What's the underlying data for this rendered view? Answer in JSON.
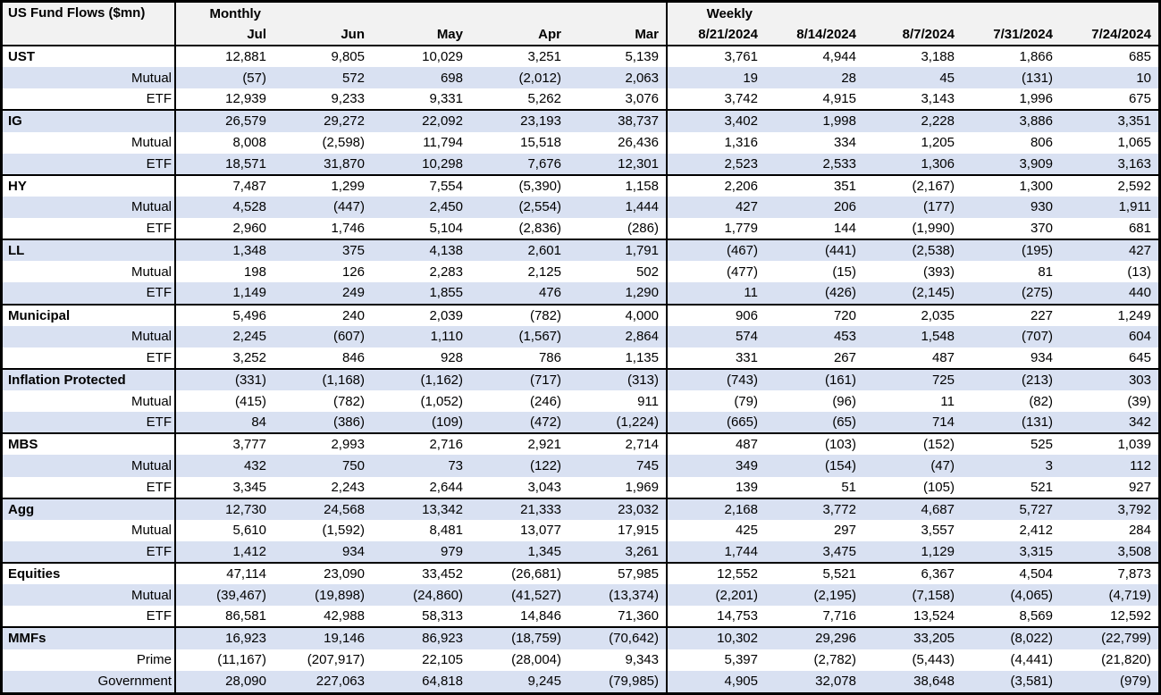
{
  "chart_data": {
    "type": "table",
    "title": "US Fund Flows ($mn)",
    "column_groups": [
      {
        "label": "Monthly",
        "columns": [
          "Jul",
          "Jun",
          "May",
          "Apr",
          "Mar"
        ]
      },
      {
        "label": "Weekly",
        "columns": [
          "8/21/2024",
          "8/14/2024",
          "8/7/2024",
          "7/31/2024",
          "7/24/2024"
        ]
      }
    ],
    "rows": [
      {
        "label": "UST",
        "level": "category",
        "values": [
          "12,881",
          "9,805",
          "10,029",
          "3,251",
          "5,139",
          "3,761",
          "4,944",
          "3,188",
          "1,866",
          "685"
        ]
      },
      {
        "label": "Mutual",
        "level": "sub",
        "values": [
          "(57)",
          "572",
          "698",
          "(2,012)",
          "2,063",
          "19",
          "28",
          "45",
          "(131)",
          "10"
        ]
      },
      {
        "label": "ETF",
        "level": "sub",
        "values": [
          "12,939",
          "9,233",
          "9,331",
          "5,262",
          "3,076",
          "3,742",
          "4,915",
          "3,143",
          "1,996",
          "675"
        ]
      },
      {
        "label": "IG",
        "level": "category",
        "values": [
          "26,579",
          "29,272",
          "22,092",
          "23,193",
          "38,737",
          "3,402",
          "1,998",
          "2,228",
          "3,886",
          "3,351"
        ]
      },
      {
        "label": "Mutual",
        "level": "sub",
        "values": [
          "8,008",
          "(2,598)",
          "11,794",
          "15,518",
          "26,436",
          "1,316",
          "334",
          "1,205",
          "806",
          "1,065"
        ]
      },
      {
        "label": "ETF",
        "level": "sub",
        "values": [
          "18,571",
          "31,870",
          "10,298",
          "7,676",
          "12,301",
          "2,523",
          "2,533",
          "1,306",
          "3,909",
          "3,163"
        ]
      },
      {
        "label": "HY",
        "level": "category",
        "values": [
          "7,487",
          "1,299",
          "7,554",
          "(5,390)",
          "1,158",
          "2,206",
          "351",
          "(2,167)",
          "1,300",
          "2,592"
        ]
      },
      {
        "label": "Mutual",
        "level": "sub",
        "values": [
          "4,528",
          "(447)",
          "2,450",
          "(2,554)",
          "1,444",
          "427",
          "206",
          "(177)",
          "930",
          "1,911"
        ]
      },
      {
        "label": "ETF",
        "level": "sub",
        "values": [
          "2,960",
          "1,746",
          "5,104",
          "(2,836)",
          "(286)",
          "1,779",
          "144",
          "(1,990)",
          "370",
          "681"
        ]
      },
      {
        "label": "LL",
        "level": "category",
        "values": [
          "1,348",
          "375",
          "4,138",
          "2,601",
          "1,791",
          "(467)",
          "(441)",
          "(2,538)",
          "(195)",
          "427"
        ]
      },
      {
        "label": "Mutual",
        "level": "sub",
        "values": [
          "198",
          "126",
          "2,283",
          "2,125",
          "502",
          "(477)",
          "(15)",
          "(393)",
          "81",
          "(13)"
        ]
      },
      {
        "label": "ETF",
        "level": "sub",
        "values": [
          "1,149",
          "249",
          "1,855",
          "476",
          "1,290",
          "11",
          "(426)",
          "(2,145)",
          "(275)",
          "440"
        ]
      },
      {
        "label": "Municipal",
        "level": "category",
        "values": [
          "5,496",
          "240",
          "2,039",
          "(782)",
          "4,000",
          "906",
          "720",
          "2,035",
          "227",
          "1,249"
        ]
      },
      {
        "label": "Mutual",
        "level": "sub",
        "values": [
          "2,245",
          "(607)",
          "1,110",
          "(1,567)",
          "2,864",
          "574",
          "453",
          "1,548",
          "(707)",
          "604"
        ]
      },
      {
        "label": "ETF",
        "level": "sub",
        "values": [
          "3,252",
          "846",
          "928",
          "786",
          "1,135",
          "331",
          "267",
          "487",
          "934",
          "645"
        ]
      },
      {
        "label": "Inflation Protected",
        "level": "category",
        "values": [
          "(331)",
          "(1,168)",
          "(1,162)",
          "(717)",
          "(313)",
          "(743)",
          "(161)",
          "725",
          "(213)",
          "303"
        ]
      },
      {
        "label": "Mutual",
        "level": "sub",
        "values": [
          "(415)",
          "(782)",
          "(1,052)",
          "(246)",
          "911",
          "(79)",
          "(96)",
          "11",
          "(82)",
          "(39)"
        ]
      },
      {
        "label": "ETF",
        "level": "sub",
        "values": [
          "84",
          "(386)",
          "(109)",
          "(472)",
          "(1,224)",
          "(665)",
          "(65)",
          "714",
          "(131)",
          "342"
        ]
      },
      {
        "label": "MBS",
        "level": "category",
        "values": [
          "3,777",
          "2,993",
          "2,716",
          "2,921",
          "2,714",
          "487",
          "(103)",
          "(152)",
          "525",
          "1,039"
        ]
      },
      {
        "label": "Mutual",
        "level": "sub",
        "values": [
          "432",
          "750",
          "73",
          "(122)",
          "745",
          "349",
          "(154)",
          "(47)",
          "3",
          "112"
        ]
      },
      {
        "label": "ETF",
        "level": "sub",
        "values": [
          "3,345",
          "2,243",
          "2,644",
          "3,043",
          "1,969",
          "139",
          "51",
          "(105)",
          "521",
          "927"
        ]
      },
      {
        "label": "Agg",
        "level": "category",
        "values": [
          "12,730",
          "24,568",
          "13,342",
          "21,333",
          "23,032",
          "2,168",
          "3,772",
          "4,687",
          "5,727",
          "3,792"
        ]
      },
      {
        "label": "Mutual",
        "level": "sub",
        "values": [
          "5,610",
          "(1,592)",
          "8,481",
          "13,077",
          "17,915",
          "425",
          "297",
          "3,557",
          "2,412",
          "284"
        ]
      },
      {
        "label": "ETF",
        "level": "sub",
        "values": [
          "1,412",
          "934",
          "979",
          "1,345",
          "3,261",
          "1,744",
          "3,475",
          "1,129",
          "3,315",
          "3,508"
        ]
      },
      {
        "label": "Equities",
        "level": "category",
        "values": [
          "47,114",
          "23,090",
          "33,452",
          "(26,681)",
          "57,985",
          "12,552",
          "5,521",
          "6,367",
          "4,504",
          "7,873"
        ]
      },
      {
        "label": "Mutual",
        "level": "sub",
        "values": [
          "(39,467)",
          "(19,898)",
          "(24,860)",
          "(41,527)",
          "(13,374)",
          "(2,201)",
          "(2,195)",
          "(7,158)",
          "(4,065)",
          "(4,719)"
        ]
      },
      {
        "label": "ETF",
        "level": "sub",
        "values": [
          "86,581",
          "42,988",
          "58,313",
          "14,846",
          "71,360",
          "14,753",
          "7,716",
          "13,524",
          "8,569",
          "12,592"
        ]
      },
      {
        "label": "MMFs",
        "level": "category",
        "values": [
          "16,923",
          "19,146",
          "86,923",
          "(18,759)",
          "(70,642)",
          "10,302",
          "29,296",
          "33,205",
          "(8,022)",
          "(22,799)"
        ]
      },
      {
        "label": "Prime",
        "level": "sub",
        "values": [
          "(11,167)",
          "(207,917)",
          "22,105",
          "(28,004)",
          "9,343",
          "5,397",
          "(2,782)",
          "(5,443)",
          "(4,441)",
          "(21,820)"
        ]
      },
      {
        "label": "Government",
        "level": "sub",
        "values": [
          "28,090",
          "227,063",
          "64,818",
          "9,245",
          "(79,985)",
          "4,905",
          "32,078",
          "38,648",
          "(3,581)",
          "(979)"
        ]
      }
    ]
  },
  "colors": {
    "row_alt_bg": "#d9e1f2",
    "header_bg": "#f2f2f2",
    "border": "#000000",
    "text": "#000000"
  }
}
